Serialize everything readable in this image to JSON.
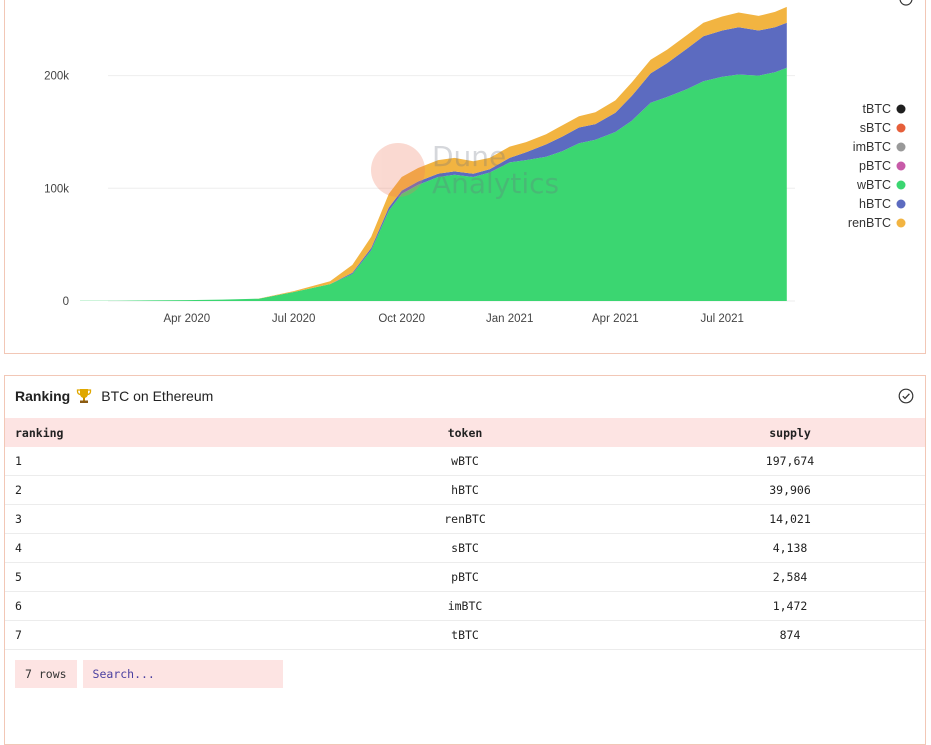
{
  "chart_panel": {},
  "chart_data": {
    "type": "area",
    "stacked": true,
    "x": [
      "2020-01-01",
      "2020-02-01",
      "2020-03-01",
      "2020-04-01",
      "2020-05-01",
      "2020-06-01",
      "2020-07-01",
      "2020-08-01",
      "2020-08-20",
      "2020-09-05",
      "2020-09-20",
      "2020-10-01",
      "2020-10-15",
      "2020-11-01",
      "2020-11-15",
      "2020-12-01",
      "2020-12-15",
      "2021-01-01",
      "2021-01-15",
      "2021-02-01",
      "2021-02-15",
      "2021-03-01",
      "2021-03-15",
      "2021-04-01",
      "2021-04-15",
      "2021-05-01",
      "2021-05-15",
      "2021-06-01",
      "2021-06-15",
      "2021-07-01",
      "2021-07-15",
      "2021-08-01",
      "2021-08-15",
      "2021-08-25"
    ],
    "series": [
      {
        "name": "wBTC",
        "color": "#3bd671",
        "values": [
          200,
          300,
          500,
          800,
          1200,
          2000,
          8000,
          15000,
          24000,
          45000,
          80000,
          95000,
          103000,
          110000,
          112000,
          110000,
          114000,
          123000,
          125000,
          128000,
          133000,
          140000,
          143000,
          150000,
          160000,
          176000,
          181000,
          188000,
          195000,
          199000,
          201000,
          200000,
          203000,
          207000
        ]
      },
      {
        "name": "hBTC",
        "color": "#5c6bc0",
        "values": [
          0,
          0,
          0,
          0,
          0,
          0,
          0,
          0,
          1000,
          2000,
          3000,
          3000,
          3000,
          3000,
          3000,
          3000,
          3000,
          4000,
          7000,
          11000,
          13000,
          14000,
          14000,
          17000,
          22000,
          26000,
          30000,
          36000,
          40000,
          41000,
          42000,
          40000,
          40000,
          40000
        ]
      },
      {
        "name": "renBTC",
        "color": "#f2b441",
        "values": [
          0,
          0,
          0,
          0,
          0,
          100,
          800,
          2500,
          7000,
          10000,
          12000,
          12000,
          12000,
          12000,
          12000,
          11000,
          10000,
          10000,
          9000,
          9000,
          10000,
          10000,
          10500,
          11000,
          12000,
          12000,
          12000,
          12000,
          12000,
          12500,
          13000,
          13000,
          13500,
          14000
        ]
      },
      {
        "name": "pBTC",
        "color": "#c75ba8",
        "values": [
          0,
          0,
          0,
          0,
          0,
          0,
          0,
          0,
          0,
          0,
          0,
          0,
          0,
          0,
          0,
          0,
          0,
          0,
          0,
          0,
          0,
          0,
          0,
          0,
          0,
          0,
          0,
          0,
          0,
          0,
          0,
          0,
          0,
          0
        ]
      },
      {
        "name": "imBTC",
        "color": "#999999",
        "values": [
          0,
          0,
          0,
          0,
          0,
          0,
          0,
          0,
          0,
          0,
          0,
          0,
          0,
          0,
          0,
          0,
          0,
          0,
          0,
          0,
          0,
          0,
          0,
          0,
          0,
          0,
          0,
          0,
          0,
          0,
          0,
          0,
          0,
          0
        ]
      },
      {
        "name": "sBTC",
        "color": "#e65f3a",
        "values": [
          0,
          0,
          0,
          0,
          0,
          0,
          0,
          0,
          0,
          0,
          0,
          0,
          0,
          0,
          0,
          0,
          0,
          0,
          0,
          0,
          0,
          0,
          0,
          0,
          0,
          0,
          0,
          0,
          0,
          0,
          0,
          0,
          0,
          0
        ]
      },
      {
        "name": "tBTC",
        "color": "#1f1f1f",
        "values": [
          0,
          0,
          0,
          0,
          0,
          0,
          0,
          0,
          0,
          0,
          0,
          0,
          0,
          0,
          0,
          0,
          0,
          0,
          0,
          0,
          0,
          0,
          0,
          0,
          0,
          0,
          0,
          0,
          0,
          0,
          0,
          0,
          0,
          0
        ]
      }
    ],
    "x_ticks": [
      "Apr 2020",
      "Jul 2020",
      "Oct 2020",
      "Jan 2021",
      "Apr 2021",
      "Jul 2021"
    ],
    "y_ticks": [
      "0",
      "100k",
      "200k"
    ],
    "ylim": [
      0,
      260000
    ],
    "legend": [
      "tBTC",
      "sBTC",
      "imBTC",
      "pBTC",
      "wBTC",
      "hBTC",
      "renBTC"
    ],
    "legend_position": "right",
    "watermark": "Dune Analytics",
    "grid": true
  },
  "table_panel": {
    "title_bold": "Ranking",
    "title_text": "BTC on Ethereum",
    "columns": [
      "ranking",
      "token",
      "supply"
    ],
    "rows": [
      [
        "1",
        "wBTC",
        "197,674"
      ],
      [
        "2",
        "hBTC",
        "39,906"
      ],
      [
        "3",
        "renBTC",
        "14,021"
      ],
      [
        "4",
        "sBTC",
        "4,138"
      ],
      [
        "5",
        "pBTC",
        "2,584"
      ],
      [
        "6",
        "imBTC",
        "1,472"
      ],
      [
        "7",
        "tBTC",
        "874"
      ]
    ],
    "row_count": "7 rows",
    "search_placeholder": "Search..."
  }
}
